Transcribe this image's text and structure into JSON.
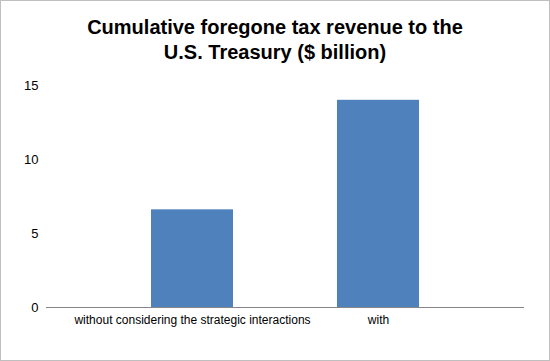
{
  "chart_data": {
    "type": "bar",
    "title": "Cumulative foregone tax revenue to the U.S. Treasury ($ billion)",
    "categories": [
      "without considering the strategic interactions",
      "with"
    ],
    "values": [
      6.6,
      14.0
    ],
    "color": "#4f81bd",
    "ylim": [
      0,
      15
    ],
    "yticks": [
      0,
      5,
      10,
      15
    ],
    "grid": false
  }
}
